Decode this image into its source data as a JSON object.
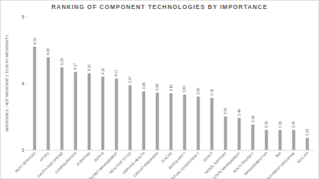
{
  "chart_data": {
    "type": "bar",
    "title": "RANKING OF COMPONENT TECHNOLOGIES BY IMPORTANCE",
    "y_label": "IMPORTANCE - NOT IMPORTANT 1 TO VERY IMPORTANT 5",
    "categories": [
      "REST SERVICES",
      "HTTP/2",
      "OAUTH AND OPENID",
      "CONFIGURATION",
      "EVENTING",
      "JSON-B",
      "SECRET MANAGEMENT",
      "REACTIVE STYLE",
      "SERVICE HEALTH",
      "CIRCUIT BREAKERS",
      "JCACHE",
      "MODULARITY",
      "EVENTUAL CONSISTENCY",
      "JSON-P",
      "NOSQL SUPPORT",
      "STATE MANAGEMENT",
      "MULTI-TENANCY",
      "MANAGEMENT API",
      "JMS",
      "DEPLOYMENT GROUPING",
      "MVC API"
    ],
    "values": [
      4.55,
      4.39,
      4.24,
      4.17,
      4.15,
      4.1,
      4.07,
      3.97,
      3.88,
      3.86,
      3.85,
      3.83,
      3.8,
      3.78,
      3.5,
      3.48,
      3.38,
      3.3,
      3.3,
      3.3,
      3.18
    ],
    "value_labels": [
      "4.55",
      "4.39",
      "4.24",
      "4.17",
      "4.15",
      "4.10",
      "4.07",
      "3.97",
      "3.88",
      "3.86",
      "3.85",
      "3.83",
      "3.80",
      "3.78",
      "3.50",
      "3.48",
      "3.38",
      "3.30",
      "3.30",
      "3.30",
      "3.18"
    ],
    "data_labels": true,
    "color": "#a5a5a5",
    "ylim": [
      3,
      5
    ],
    "yticks": [
      3,
      4,
      5
    ],
    "grid": false
  }
}
